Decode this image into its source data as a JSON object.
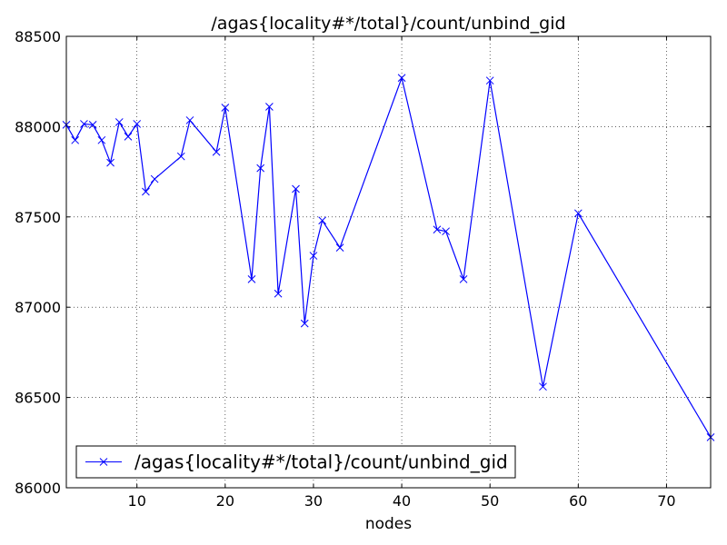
{
  "chart_data": {
    "type": "line",
    "title": "/agas{locality#*/total}/count/unbind_gid",
    "xlabel": "nodes",
    "ylabel": "",
    "xlim": [
      2,
      75
    ],
    "ylim": [
      86000,
      88500
    ],
    "xticks": [
      10,
      20,
      30,
      40,
      50,
      60,
      70
    ],
    "yticks": [
      86000,
      86500,
      87000,
      87500,
      88000,
      88500
    ],
    "grid": true,
    "legend_position": "lower-left",
    "series": [
      {
        "name": "/agas{locality#*/total}/count/unbind_gid",
        "color": "#0000ff",
        "marker": "x",
        "x": [
          2,
          3,
          4,
          5,
          6,
          7,
          8,
          9,
          10,
          11,
          12,
          15,
          16,
          19,
          20,
          23,
          24,
          25,
          26,
          28,
          29,
          30,
          31,
          33,
          40,
          44,
          45,
          47,
          50,
          56,
          60,
          75
        ],
        "y": [
          88010,
          87925,
          88015,
          88010,
          87925,
          87800,
          88025,
          87945,
          88015,
          87640,
          87710,
          87835,
          88035,
          87860,
          88105,
          87155,
          87770,
          88110,
          87075,
          87655,
          86910,
          87285,
          87480,
          87330,
          88270,
          87430,
          87420,
          87155,
          88255,
          86560,
          87520,
          86280
        ]
      }
    ]
  }
}
